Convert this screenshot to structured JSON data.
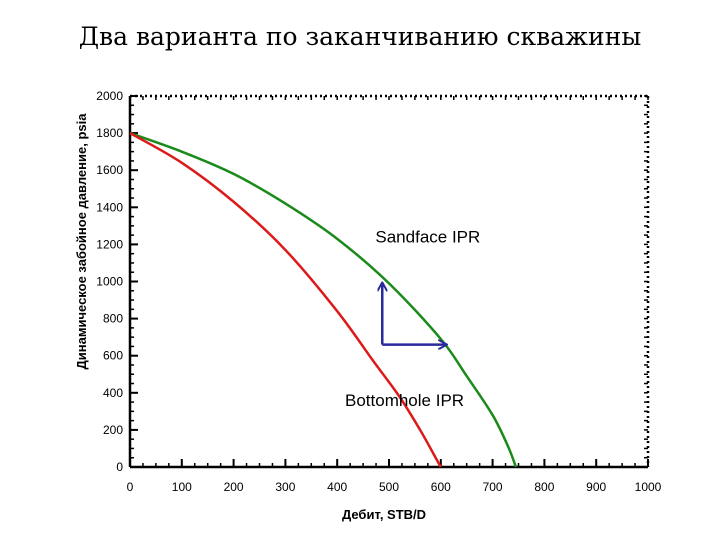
{
  "chart_data": {
    "type": "line",
    "title": "Два варианта по заканчиванию скважины",
    "xlabel": "Дебит, STB/D",
    "ylabel": "Динамическое забойное давление, psia",
    "xlim": [
      0,
      1000
    ],
    "ylim": [
      0,
      2000
    ],
    "xticks": [
      "0",
      "100",
      "200",
      "300",
      "400",
      "500",
      "600",
      "700",
      "800",
      "900",
      "1000"
    ],
    "yticks": [
      "0",
      "200",
      "400",
      "600",
      "800",
      "1000",
      "1200",
      "1400",
      "1600",
      "1800",
      "2000"
    ],
    "grid": false,
    "legend": "none",
    "series": [
      {
        "name": "Sandface IPR",
        "color": "#1a8a1a",
        "x": [
          0,
          100,
          200,
          300,
          400,
          500,
          600,
          650,
          700,
          730,
          745
        ],
        "y": [
          1800,
          1700,
          1580,
          1420,
          1230,
          990,
          690,
          490,
          280,
          110,
          0
        ]
      },
      {
        "name": "Bottomhole IPR",
        "color": "#dd1a1a",
        "x": [
          0,
          100,
          200,
          300,
          400,
          470,
          520,
          560,
          590,
          600
        ],
        "y": [
          1800,
          1640,
          1430,
          1170,
          840,
          570,
          380,
          200,
          50,
          0
        ]
      }
    ],
    "annotations": [
      {
        "text": "Sandface IPR",
        "x": 575,
        "y": 1210
      },
      {
        "text": "Bottomhole IPR",
        "x": 530,
        "y": 330
      }
    ],
    "arrows": {
      "color": "#2a2a9a",
      "origin": {
        "x": 487,
        "y": 660
      },
      "vertical_end": {
        "x": 487,
        "y": 990
      },
      "horizontal_end": {
        "x": 610,
        "y": 660
      }
    }
  }
}
